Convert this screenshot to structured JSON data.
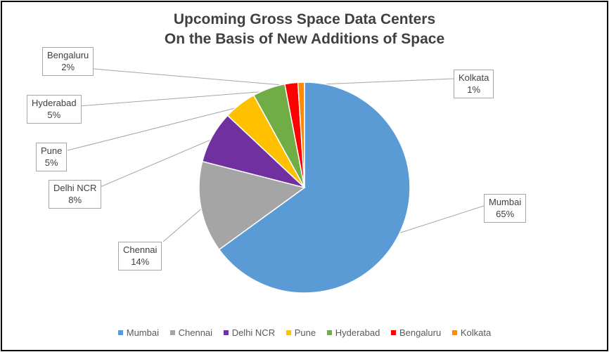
{
  "chart_data": {
    "type": "pie",
    "title": [
      "Upcoming Gross Space Data Centers",
      "On the Basis of New Additions of Space"
    ],
    "categories": [
      "Mumbai",
      "Chennai",
      "Delhi NCR",
      "Pune",
      "Hyderabad",
      "Bengaluru",
      "Kolkata"
    ],
    "values": [
      65,
      14,
      8,
      5,
      5,
      2,
      1
    ],
    "value_labels": [
      "65%",
      "14%",
      "8%",
      "5%",
      "5%",
      "2%",
      "1%"
    ],
    "colors": [
      "#5b9bd5",
      "#a5a5a5",
      "#7030a0",
      "#ffc000",
      "#70ad47",
      "#ff0000",
      "#ff8c00"
    ],
    "legend_position": "bottom",
    "data_labels": "outside-with-leader-lines"
  }
}
